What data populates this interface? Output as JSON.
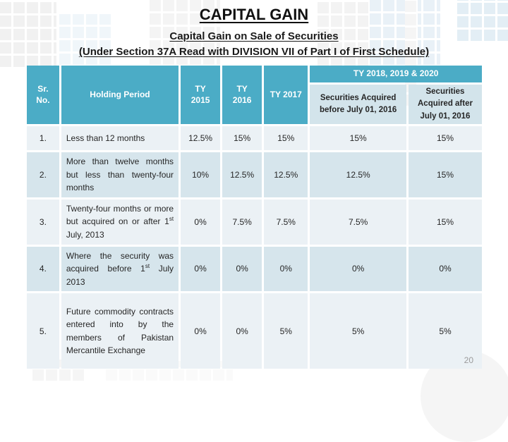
{
  "slide": {
    "title": "CAPITAL GAIN",
    "subtitle_line1": "Capital Gain on Sale of Securities",
    "subtitle_line2": "(Under Section 37A Read with DIVISION VII of Part I of First Schedule)",
    "page_number": "20"
  },
  "table": {
    "header": {
      "sr_no": "Sr.\nNo.",
      "holding_period": "Holding Period",
      "ty2015": "TY\n2015",
      "ty2016": "TY\n2016",
      "ty2017": "TY 2017",
      "ty2018_group": "TY 2018, 2019 & 2020",
      "securities_before": "Securities Acquired before July 01, 2016",
      "securities_after": "Securities Acquired after July 01, 2016"
    },
    "rows": [
      {
        "sr": "1.",
        "holding": "Less than 12 months",
        "ty2015": "12.5%",
        "ty2016": "15%",
        "ty2017": "15%",
        "before": "15%",
        "after": "15%"
      },
      {
        "sr": "2.",
        "holding": "More than twelve months but less than twenty-four months",
        "ty2015": "10%",
        "ty2016": "12.5%",
        "ty2017": "12.5%",
        "before": "12.5%",
        "after": "15%"
      },
      {
        "sr": "3.",
        "holding_rich": "Twenty-four months or more but acquired on or after 1<sup>st</sup> July, 2013",
        "ty2015": "0%",
        "ty2016": "7.5%",
        "ty2017": "7.5%",
        "before": "7.5%",
        "after": "15%"
      },
      {
        "sr": "4.",
        "holding_rich": "Where the security was acquired before 1<sup>st</sup> July 2013",
        "ty2015": "0%",
        "ty2016": "0%",
        "ty2017": "0%",
        "before": "0%",
        "after": "0%"
      },
      {
        "sr": "5.",
        "holding": "Future commodity contracts entered into by the members of Pakistan Mercantile Exchange",
        "ty2015": "0%",
        "ty2016": "0%",
        "ty2017": "5%",
        "before": "5%",
        "after": "5%"
      }
    ]
  },
  "colors": {
    "header_teal": "#4BACC6",
    "subheader_blue": "#D3E4EB",
    "row_light": "#EBF1F5",
    "row_dark": "#D6E5EC"
  }
}
